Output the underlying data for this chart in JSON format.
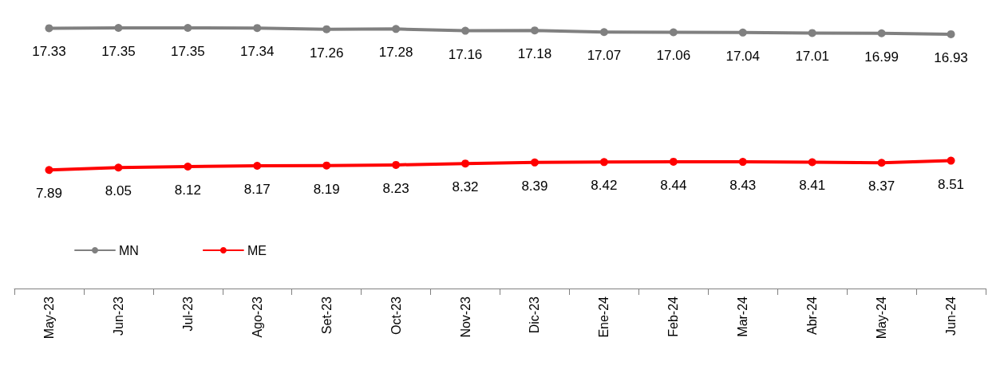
{
  "chart_data": {
    "type": "line",
    "categories": [
      "May-23",
      "Jun-23",
      "Jul-23",
      "Ago-23",
      "Set-23",
      "Oct-23",
      "Nov-23",
      "Dic-23",
      "Ene-24",
      "Feb-24",
      "Mar-24",
      "Abr-24",
      "May-24",
      "Jun-24"
    ],
    "series": [
      {
        "name": "MN",
        "color": "#808080",
        "values": [
          17.33,
          17.35,
          17.35,
          17.34,
          17.26,
          17.28,
          17.16,
          17.18,
          17.07,
          17.06,
          17.04,
          17.01,
          16.99,
          16.93
        ]
      },
      {
        "name": "ME",
        "color": "#ff0000",
        "values": [
          7.89,
          8.05,
          8.12,
          8.17,
          8.19,
          8.23,
          8.32,
          8.39,
          8.42,
          8.44,
          8.43,
          8.41,
          8.37,
          8.51
        ]
      }
    ],
    "data_labels": true,
    "legend": "left",
    "marker": "circle",
    "line_style": "solid",
    "grid": false,
    "tick_labels": "x"
  }
}
